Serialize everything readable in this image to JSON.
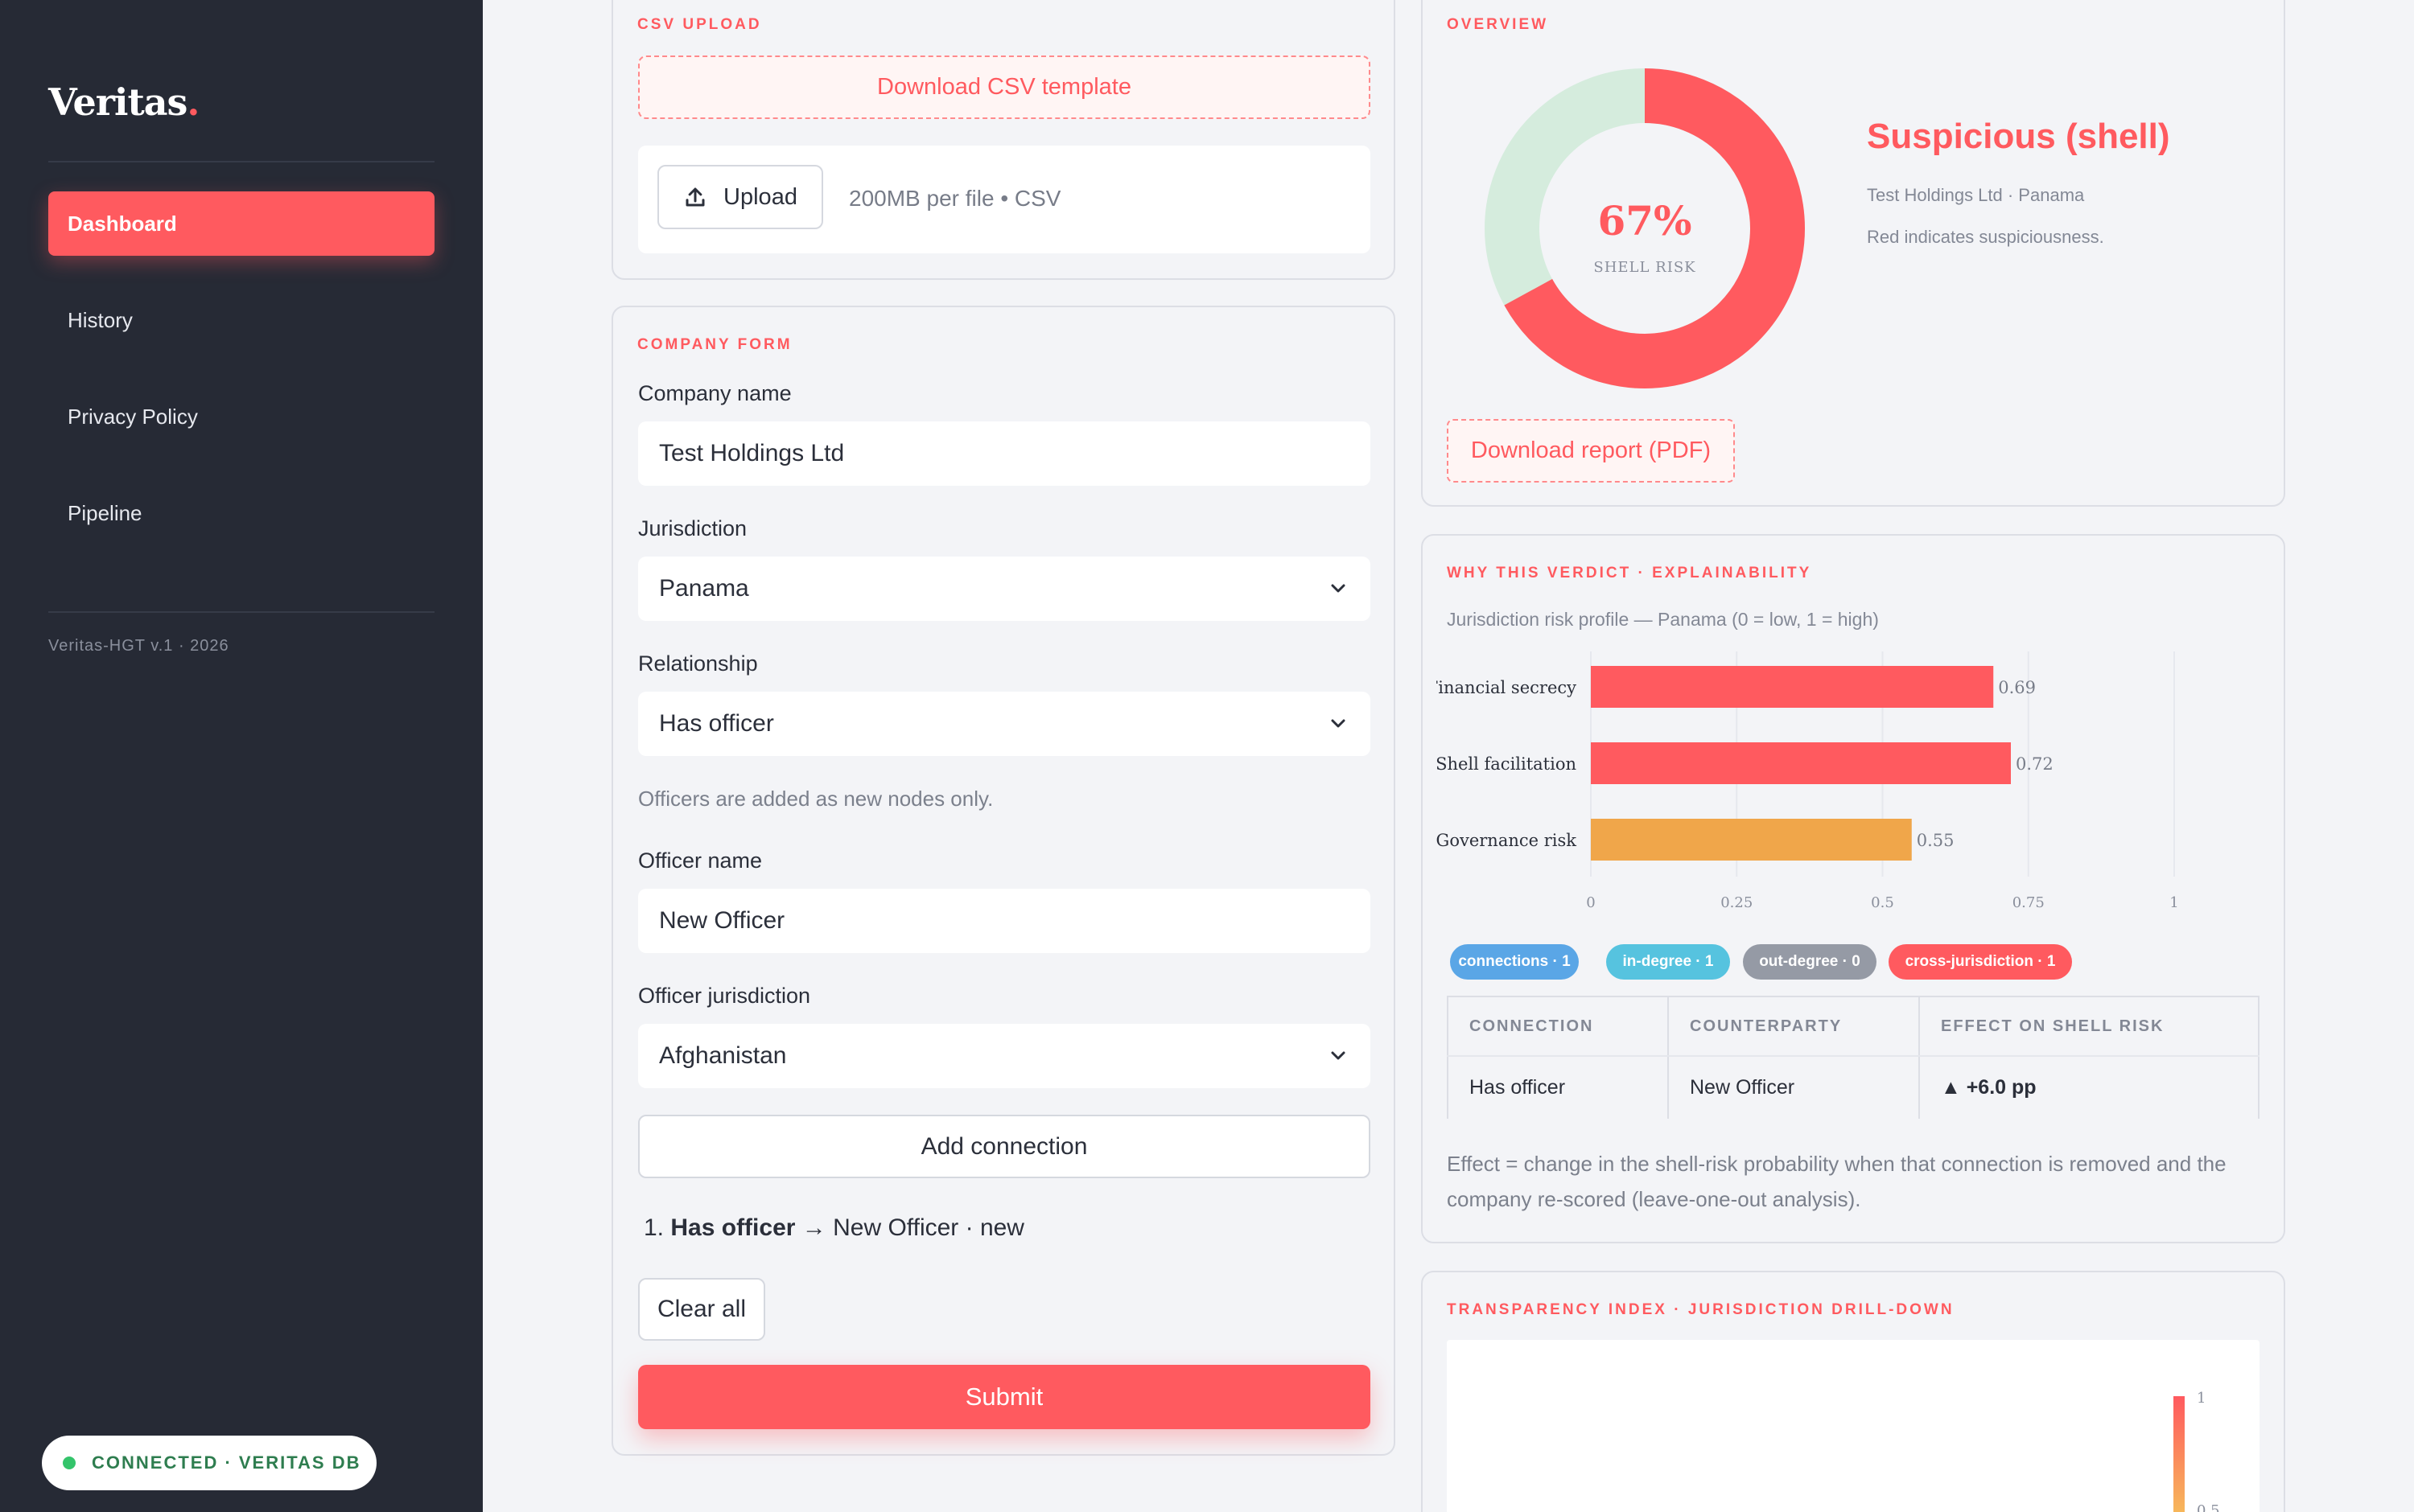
{
  "sidebar": {
    "brand": "Veritas",
    "brand_dot": ".",
    "nav": [
      "Dashboard",
      "History",
      "Privacy Policy",
      "Pipeline"
    ],
    "active": "Dashboard",
    "version": "Veritas-HGT v.1 · 2026",
    "connection_status": "CONNECTED · VERITAS DB"
  },
  "csv_upload": {
    "title": "CSV UPLOAD",
    "template_button": "Download CSV template",
    "upload_button": "Upload",
    "upload_hint": "200MB per file • CSV"
  },
  "company_form": {
    "title": "COMPANY FORM",
    "company_name_label": "Company name",
    "company_name_value": "Test Holdings Ltd",
    "jurisdiction_label": "Jurisdiction",
    "jurisdiction_value": "Panama",
    "relationship_label": "Relationship",
    "relationship_value": "Has officer",
    "relationship_hint": "Officers are added as new nodes only.",
    "officer_name_label": "Officer name",
    "officer_name_value": "New Officer",
    "officer_jurisdiction_label": "Officer jurisdiction",
    "officer_jurisdiction_value": "Afghanistan",
    "add_connection_button": "Add connection",
    "connections": [
      {
        "index": "1.",
        "relationship": "Has officer",
        "arrow": "→",
        "target": "New Officer · new"
      }
    ],
    "clear_button": "Clear all",
    "submit_button": "Submit"
  },
  "overview": {
    "title": "OVERVIEW",
    "risk_percent": "67%",
    "risk_label": "SHELL RISK",
    "risk_value": 0.67,
    "verdict": "Suspicious (shell)",
    "company_meta": "Test Holdings Ltd · Panama",
    "color_note": "Red indicates suspiciousness.",
    "report_button": "Download report (PDF)",
    "colors": {
      "risk": "#ff5a5f",
      "remainder": "#d5ecdd"
    }
  },
  "explainability": {
    "title": "WHY THIS VERDICT · EXPLAINABILITY",
    "subtitle": "Jurisdiction risk profile — Panama (0 = low, 1 = high)",
    "chart_data": {
      "type": "bar",
      "orientation": "horizontal",
      "categories": [
        "Financial secrecy",
        "Shell facilitation",
        "Governance risk"
      ],
      "values": [
        0.69,
        0.72,
        0.55
      ],
      "value_labels": [
        "0.69",
        "0.72",
        "0.55"
      ],
      "colors": [
        "#ff5a5f",
        "#ff5a5f",
        "#f0a64a"
      ],
      "xlim": [
        0,
        1
      ],
      "ticks": [
        0,
        0.25,
        0.5,
        0.75,
        1
      ],
      "tick_labels": [
        "0",
        "0.25",
        "0.5",
        "0.75",
        "1"
      ],
      "grid": true
    },
    "badges": [
      {
        "label": "connections · 1",
        "color": "#5aa6e6"
      },
      {
        "label": "in-degree · 1",
        "color": "#56c3df"
      },
      {
        "label": "out-degree · 0",
        "color": "#959aa5"
      },
      {
        "label": "cross-jurisdiction · 1",
        "color": "#ff5a5f"
      }
    ],
    "table": {
      "headers": [
        "CONNECTION",
        "COUNTERPARTY",
        "EFFECT ON SHELL RISK"
      ],
      "rows": [
        {
          "connection": "Has officer",
          "counterparty": "New Officer",
          "effect": "▲ +6.0 pp"
        }
      ]
    },
    "note": "Effect = change in the shell-risk probability when that connection is removed and the company re-scored (leave-one-out analysis)."
  },
  "transparency": {
    "title": "TRANSPARENCY INDEX · JURISDICTION DRILL-DOWN",
    "scale_top_label": "1",
    "scale_bottom_label": "0.5"
  }
}
